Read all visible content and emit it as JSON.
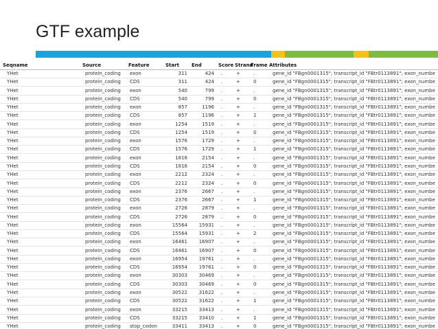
{
  "title": "GTF example",
  "table": {
    "header": [
      "Seqname",
      "Source",
      "Feature",
      "Start",
      "End",
      "Score",
      "Strand",
      "Frame",
      "Attributes"
    ],
    "rows": [
      [
        "YHet",
        "protein_coding",
        "exon",
        "311",
        "424",
        ".",
        "+",
        ".",
        "gene_id \"FBgn0001315\"; transcript_id \"FBtr0113891\"; exon_numbe"
      ],
      [
        "YHet",
        "protein_coding",
        "CDS",
        "311",
        "424",
        ".",
        "+",
        "0",
        "gene_id \"FBgn0001315\"; transcript_id \"FBtr0113891\"; exon_numbe"
      ],
      [
        "YHet",
        "protein_coding",
        "exon",
        "540",
        "799",
        ".",
        "+",
        ".",
        "gene_id \"FBgn0001315\"; transcript_id \"FBtr0113891\"; exon_numbe"
      ],
      [
        "YHet",
        "protein_coding",
        "CDS",
        "540",
        "799",
        ".",
        "+",
        "0",
        "gene_id \"FBgn0001315\"; transcript_id \"FBtr0113891\"; exon_numbe"
      ],
      [
        "YHet",
        "protein_coding",
        "exon",
        "857",
        "1196",
        ".",
        "+",
        ".",
        "gene_id \"FBgn0001315\"; transcript_id \"FBtr0113891\"; exon_numbe"
      ],
      [
        "YHet",
        "protein_coding",
        "CDS",
        "857",
        "1196",
        ".",
        "+",
        "1",
        "gene_id \"FBgn0001315\"; transcript_id \"FBtr0113891\"; exon_numbe"
      ],
      [
        "YHet",
        "protein_coding",
        "exon",
        "1254",
        "1519",
        ".",
        "+",
        ".",
        "gene_id \"FBgn0001315\"; transcript_id \"FBtr0113891\"; exon_numbe"
      ],
      [
        "YHet",
        "protein_coding",
        "CDS",
        "1254",
        "1519",
        ".",
        "+",
        "0",
        "gene_id \"FBgn0001315\"; transcript_id \"FBtr0113891\"; exon_numbe"
      ],
      [
        "YHet",
        "protein_coding",
        "exon",
        "1576",
        "1729",
        ".",
        "+",
        ".",
        "gene_id \"FBgn0001315\"; transcript_id \"FBtr0113891\"; exon_numbe"
      ],
      [
        "YHet",
        "protein_coding",
        "CDS",
        "1576",
        "1729",
        ".",
        "+",
        "1",
        "gene_id \"FBgn0001315\"; transcript_id \"FBtr0113891\"; exon_numbe"
      ],
      [
        "YHet",
        "protein_coding",
        "exon",
        "1816",
        "2154",
        ".",
        "+",
        ".",
        "gene_id \"FBgn0001315\"; transcript_id \"FBtr0113891\"; exon_numbe"
      ],
      [
        "YHet",
        "protein_coding",
        "CDS",
        "1816",
        "2154",
        ".",
        "+",
        "0",
        "gene_id \"FBgn0001315\"; transcript_id \"FBtr0113891\"; exon_numbe"
      ],
      [
        "YHet",
        "protein_coding",
        "exon",
        "2212",
        "2324",
        ".",
        "+",
        ".",
        "gene_id \"FBgn0001315\"; transcript_id \"FBtr0113891\"; exon_numbe"
      ],
      [
        "YHet",
        "protein_coding",
        "CDS",
        "2212",
        "2324",
        ".",
        "+",
        "0",
        "gene_id \"FBgn0001315\"; transcript_id \"FBtr0113891\"; exon_numbe"
      ],
      [
        "YHet",
        "protein_coding",
        "exon",
        "2376",
        "2667",
        ".",
        "+",
        ".",
        "gene_id \"FBgn0001315\"; transcript_id \"FBtr0113891\"; exon_numbe"
      ],
      [
        "YHet",
        "protein_coding",
        "CDS",
        "2376",
        "2667",
        ".",
        "+",
        "1",
        "gene_id \"FBgn0001315\"; transcript_id \"FBtr0113891\"; exon_numbe"
      ],
      [
        "YHet",
        "protein_coding",
        "exon",
        "2726",
        "2879",
        ".",
        "+",
        ".",
        "gene_id \"FBgn0001315\"; transcript_id \"FBtr0113891\"; exon_numbe"
      ],
      [
        "YHet",
        "protein_coding",
        "CDS",
        "2726",
        "2879",
        ".",
        "+",
        "0",
        "gene_id \"FBgn0001315\"; transcript_id \"FBtr0113891\"; exon_numbe"
      ],
      [
        "YHet",
        "protein_coding",
        "exon",
        "15564",
        "15931",
        ".",
        "+",
        ".",
        "gene_id \"FBgn0001315\"; transcript_id \"FBtr0113891\"; exon_numbe"
      ],
      [
        "YHet",
        "protein_coding",
        "CDS",
        "15564",
        "15931",
        ".",
        "+",
        "2",
        "gene_id \"FBgn0001315\"; transcript_id \"FBtr0113891\"; exon_numbe"
      ],
      [
        "YHet",
        "protein_coding",
        "exon",
        "16461",
        "16907",
        ".",
        "+",
        ".",
        "gene_id \"FBgn0001315\"; transcript_id \"FBtr0113891\"; exon_numbe"
      ],
      [
        "YHet",
        "protein_coding",
        "CDS",
        "16461",
        "16907",
        ".",
        "+",
        "0",
        "gene_id \"FBgn0001315\"; transcript_id \"FBtr0113891\"; exon_numbe"
      ],
      [
        "YHet",
        "protein_coding",
        "exon",
        "16954",
        "19761",
        ".",
        "+",
        ".",
        "gene_id \"FBgn0001315\"; transcript_id \"FBtr0113891\"; exon_numbe"
      ],
      [
        "YHet",
        "protein_coding",
        "CDS",
        "16954",
        "19761",
        ".",
        "+",
        "0",
        "gene_id \"FBgn0001315\"; transcript_id \"FBtr0113891\"; exon_numbe"
      ],
      [
        "YHet",
        "protein_coding",
        "exon",
        "30303",
        "30469",
        ".",
        "+",
        ".",
        "gene_id \"FBgn0001315\"; transcript_id \"FBtr0113891\"; exon_numbe"
      ],
      [
        "YHet",
        "protein_coding",
        "CDS",
        "30303",
        "30469",
        ".",
        "+",
        "0",
        "gene_id \"FBgn0001315\"; transcript_id \"FBtr0113891\"; exon_numbe"
      ],
      [
        "YHet",
        "protein_coding",
        "exon",
        "30522",
        "31622",
        ".",
        "+",
        ".",
        "gene_id \"FBgn0001315\"; transcript_id \"FBtr0113891\"; exon_numbe"
      ],
      [
        "YHet",
        "protein_coding",
        "CDS",
        "30522",
        "31622",
        ".",
        "+",
        "1",
        "gene_id \"FBgn0001315\"; transcript_id \"FBtr0113891\"; exon_numbe"
      ],
      [
        "YHet",
        "protein_coding",
        "exon",
        "33215",
        "33413",
        ".",
        "+",
        ".",
        "gene_id \"FBgn0001315\"; transcript_id \"FBtr0113891\"; exon_numbe"
      ],
      [
        "YHet",
        "protein_coding",
        "CDS",
        "33215",
        "33410",
        ".",
        "+",
        "1",
        "gene_id \"FBgn0001315\"; transcript_id \"FBtr0113891\"; exon_numbe"
      ],
      [
        "YHet",
        "protein_coding",
        "stop_codon",
        "33411",
        "33413",
        ".",
        "+",
        "0",
        "gene_id \"FBgn0001315\"; transcript_id \"FBtr0113891\"; exon_numbe"
      ]
    ]
  }
}
